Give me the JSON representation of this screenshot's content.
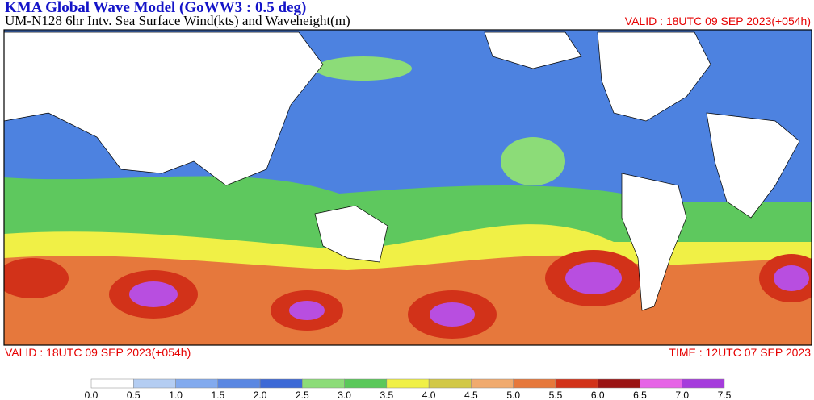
{
  "header": {
    "title": "KMA  Global Wave Model (GoWW3 : 0.5 deg)",
    "subtitle": "UM-N128  6hr Intv. Sea Surface Wind(kts) and Waveheight(m)",
    "valid_top": "VALID : 18UTC 09 SEP 2023(+054h)"
  },
  "footer": {
    "valid": "VALID : 18UTC 09 SEP 2023(+054h)",
    "time": "TIME : 12UTC 07 SEP 2023"
  },
  "colorbar": {
    "labels": [
      "0.0",
      "0.5",
      "1.0",
      "1.5",
      "2.0",
      "2.5",
      "3.0",
      "3.5",
      "4.0",
      "4.5",
      "5.0",
      "5.5",
      "6.0",
      "6.5",
      "7.0",
      "7.5"
    ],
    "colors": [
      "#ffffff",
      "#b4cdf2",
      "#82aaee",
      "#5a87e2",
      "#3d69d6",
      "#8cdc78",
      "#5ac85a",
      "#f0f046",
      "#d2c846",
      "#f0aa6e",
      "#e6783c",
      "#d23219",
      "#9b1414",
      "#e664e6",
      "#a53cdc"
    ]
  }
}
